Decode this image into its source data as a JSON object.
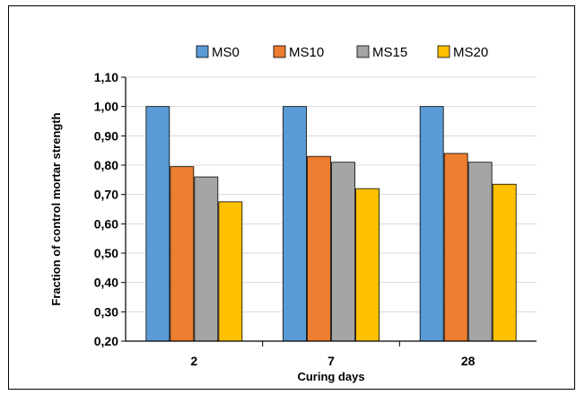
{
  "chart_data": {
    "type": "bar",
    "title": "",
    "xlabel": "Curing days",
    "ylabel": "Fraction of control mortar strength",
    "categories": [
      "2",
      "7",
      "28"
    ],
    "ylim": [
      0.2,
      1.1
    ],
    "yticks": [
      "0,20",
      "0,30",
      "0,40",
      "0,50",
      "0,60",
      "0,70",
      "0,80",
      "0,90",
      "1,00",
      "1,10"
    ],
    "grid": true,
    "legend_position": "top",
    "series": [
      {
        "name": "MS0",
        "color": "#5B9BD5",
        "values": [
          1.0,
          1.0,
          1.0
        ]
      },
      {
        "name": "MS10",
        "color": "#ED7D31",
        "values": [
          0.795,
          0.83,
          0.84
        ]
      },
      {
        "name": "MS15",
        "color": "#A5A5A5",
        "values": [
          0.76,
          0.81,
          0.81
        ]
      },
      {
        "name": "MS20",
        "color": "#FFC000",
        "values": [
          0.675,
          0.72,
          0.735
        ]
      }
    ]
  }
}
